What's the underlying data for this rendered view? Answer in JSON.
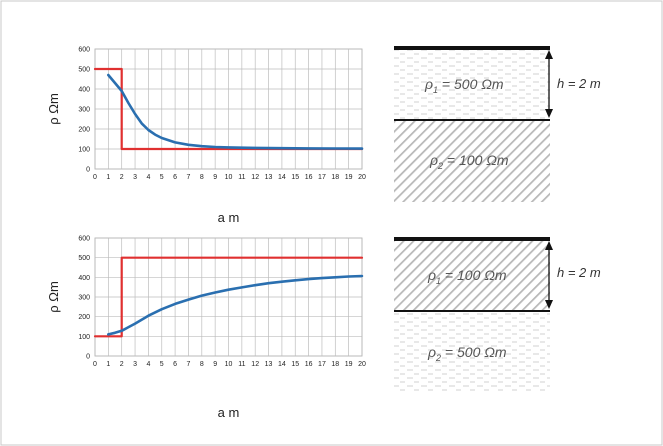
{
  "chart_data": [
    {
      "type": "line",
      "xlabel": "a m",
      "ylabel": "ρ Ωm",
      "xlim": [
        0,
        20
      ],
      "ylim": [
        0,
        600
      ],
      "xticks": [
        "0",
        "1",
        "2",
        "3",
        "4",
        "5",
        "6",
        "7",
        "8",
        "9",
        "10",
        "11",
        "12",
        "13",
        "14",
        "15",
        "16",
        "17",
        "18",
        "19",
        "20"
      ],
      "yticks": [
        "0",
        "100",
        "200",
        "300",
        "400",
        "500",
        "600"
      ],
      "grid": true,
      "series": [
        {
          "color": "#e03030",
          "points": [
            [
              0,
              500
            ],
            [
              2,
              500
            ],
            [
              2,
              100
            ],
            [
              20,
              100
            ]
          ]
        },
        {
          "color": "#2a6fb0",
          "points": [
            [
              1,
              470
            ],
            [
              1.5,
              430
            ],
            [
              2,
              390
            ],
            [
              2.5,
              330
            ],
            [
              3,
              275
            ],
            [
              3.5,
              228
            ],
            [
              4,
              195
            ],
            [
              4.5,
              172
            ],
            [
              5,
              155
            ],
            [
              6,
              133
            ],
            [
              7,
              121
            ],
            [
              8,
              114
            ],
            [
              9,
              110
            ],
            [
              10,
              108
            ],
            [
              12,
              105.5
            ],
            [
              14,
              104
            ],
            [
              16,
              103
            ],
            [
              18,
              102.5
            ],
            [
              20,
              102
            ]
          ]
        }
      ]
    },
    {
      "type": "line",
      "xlabel": "a m",
      "ylabel": "ρ Ωm",
      "xlim": [
        0,
        20
      ],
      "ylim": [
        0,
        600
      ],
      "xticks": [
        "0",
        "1",
        "2",
        "3",
        "4",
        "5",
        "6",
        "7",
        "8",
        "9",
        "10",
        "11",
        "12",
        "13",
        "14",
        "15",
        "16",
        "17",
        "18",
        "19",
        "20"
      ],
      "yticks": [
        "0",
        "100",
        "200",
        "300",
        "400",
        "500",
        "600"
      ],
      "grid": true,
      "series": [
        {
          "color": "#e03030",
          "points": [
            [
              0,
              100
            ],
            [
              2,
              100
            ],
            [
              2,
              500
            ],
            [
              20,
              500
            ]
          ]
        },
        {
          "color": "#2a6fb0",
          "points": [
            [
              1,
              110
            ],
            [
              1.5,
              118
            ],
            [
              2,
              128
            ],
            [
              3,
              165
            ],
            [
              4,
              205
            ],
            [
              5,
              238
            ],
            [
              6,
              265
            ],
            [
              7,
              287
            ],
            [
              8,
              307
            ],
            [
              9,
              323
            ],
            [
              10,
              337
            ],
            [
              11,
              349
            ],
            [
              12,
              360
            ],
            [
              13,
              370
            ],
            [
              14,
              378
            ],
            [
              15,
              385
            ],
            [
              16,
              391
            ],
            [
              17,
              396
            ],
            [
              18,
              400
            ],
            [
              19,
              404
            ],
            [
              20,
              407
            ]
          ]
        }
      ]
    }
  ],
  "diagrams": [
    {
      "h_label": "h = 2 m",
      "layer1": {
        "label_main": "ρ",
        "label_sub": "1",
        "label_rest": " = 500 Ωm",
        "pattern": "dashes"
      },
      "layer2": {
        "label_main": "ρ",
        "label_sub": "2",
        "label_rest": " = 100 Ωm",
        "pattern": "hatch"
      }
    },
    {
      "h_label": "h = 2 m",
      "layer1": {
        "label_main": "ρ",
        "label_sub": "1",
        "label_rest": " = 100 Ωm",
        "pattern": "hatch"
      },
      "layer2": {
        "label_main": "ρ",
        "label_sub": "2",
        "label_rest": " = 500 Ωm",
        "pattern": "dashes"
      }
    }
  ]
}
